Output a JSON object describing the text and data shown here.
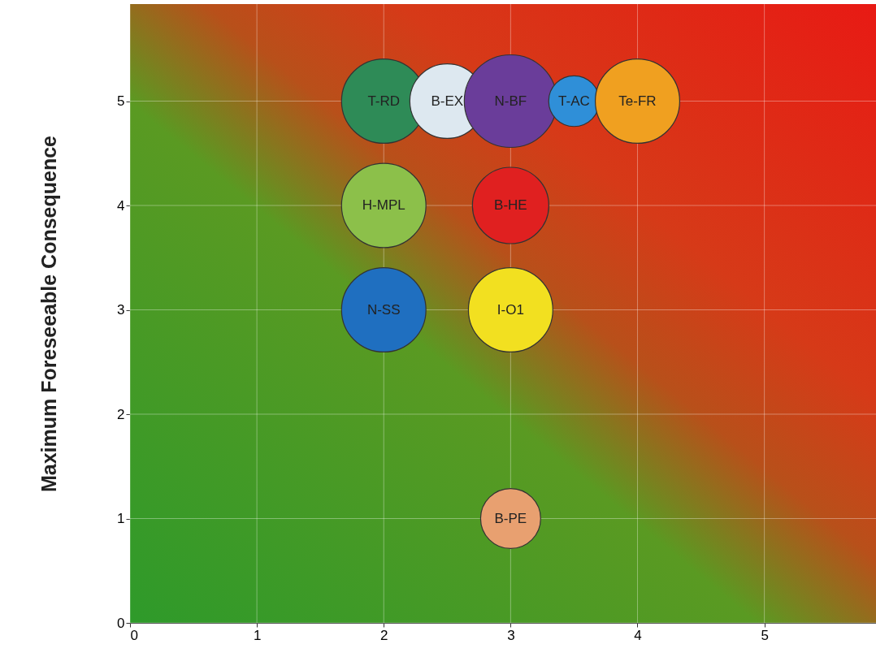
{
  "chart_data": {
    "type": "bubble",
    "ylabel": "Maximum Foreseeable Consequence",
    "xlim": [
      0,
      5.88
    ],
    "ylim": [
      0,
      5.93
    ],
    "xticks": [
      0,
      1,
      2,
      3,
      4,
      5
    ],
    "yticks": [
      0,
      1,
      2,
      3,
      4,
      5
    ],
    "grid": true,
    "series": [
      {
        "name": "T-RD",
        "color": "#2e8b57",
        "x": [
          2
        ],
        "values": [
          5
        ],
        "sizes": [
          0.83
        ]
      },
      {
        "name": "B-EX",
        "color": "#dde8f0",
        "x": [
          2.5
        ],
        "values": [
          5
        ],
        "sizes": [
          0.65
        ]
      },
      {
        "name": "N-BF",
        "color": "#6a3d9a",
        "x": [
          3
        ],
        "values": [
          5
        ],
        "sizes": [
          1
        ]
      },
      {
        "name": "T-AC",
        "color": "#2f8fd8",
        "x": [
          3.5
        ],
        "values": [
          5
        ],
        "sizes": [
          0.3
        ]
      },
      {
        "name": "Te-FR",
        "color": "#f0a020",
        "x": [
          4
        ],
        "values": [
          5
        ],
        "sizes": [
          0.83
        ]
      },
      {
        "name": "H-MPL",
        "color": "#8cc04a",
        "x": [
          2
        ],
        "values": [
          4
        ],
        "sizes": [
          0.83
        ]
      },
      {
        "name": "B-HE",
        "color": "#e02020",
        "x": [
          3
        ],
        "values": [
          4
        ],
        "sizes": [
          0.68
        ]
      },
      {
        "name": "N-SS",
        "color": "#1f6fc0",
        "x": [
          2
        ],
        "values": [
          3
        ],
        "sizes": [
          0.83
        ]
      },
      {
        "name": "I-O1",
        "color": "#f2e020",
        "x": [
          3
        ],
        "values": [
          3
        ],
        "sizes": [
          0.83
        ]
      },
      {
        "name": "B-PE",
        "color": "#e8a070",
        "x": [
          3
        ],
        "values": [
          1
        ],
        "sizes": [
          0.42
        ]
      }
    ]
  }
}
